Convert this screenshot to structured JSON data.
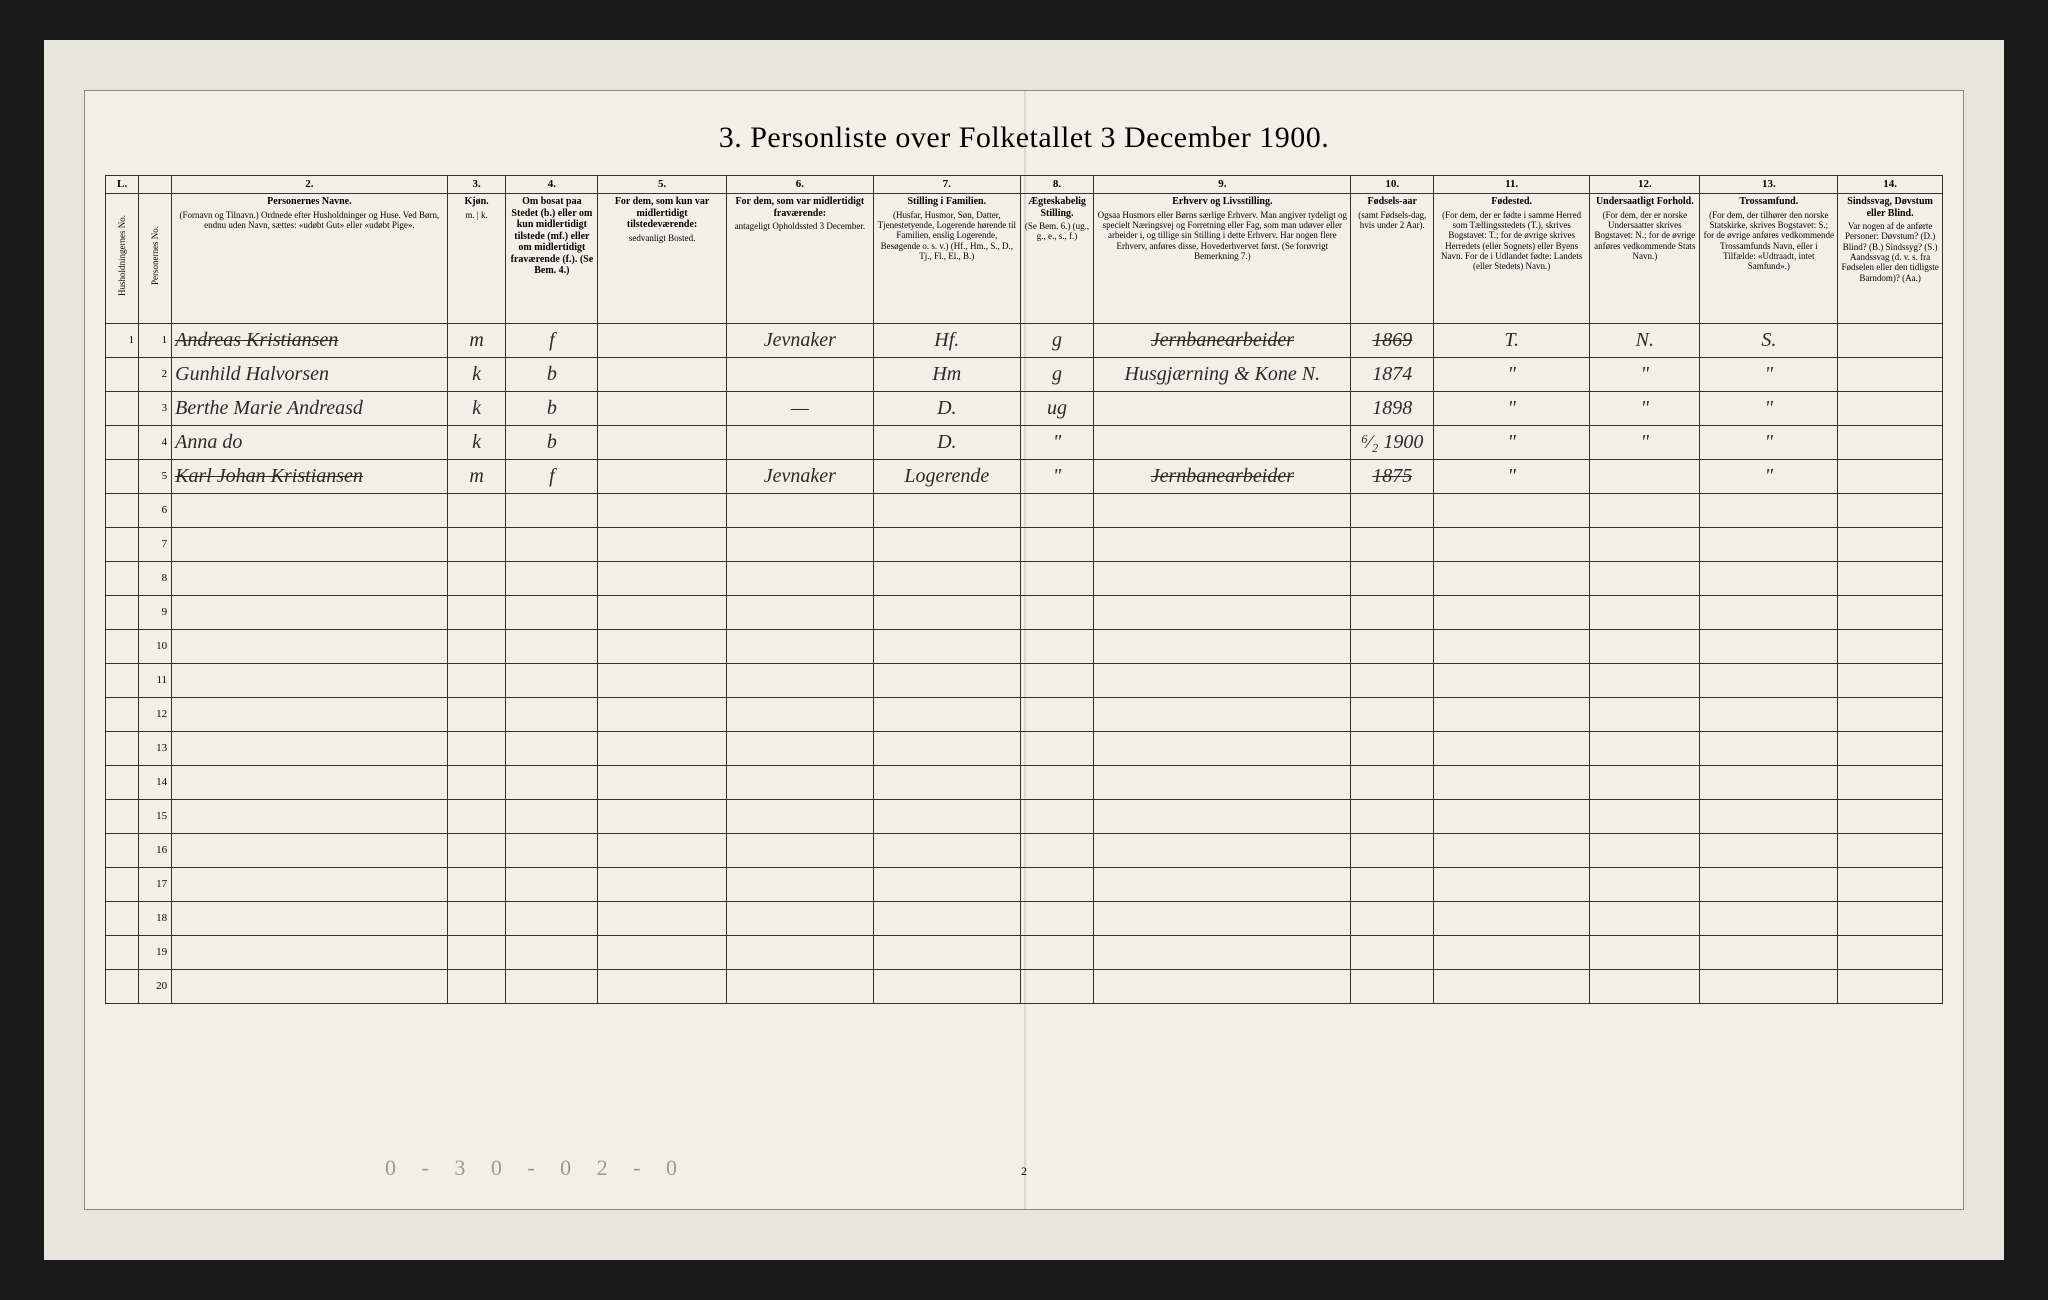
{
  "title": "3.  Personliste over Folketallet 3 December 1900.",
  "page_number": "2",
  "footer_marks": "0 - 3   0 - 0   2 - 0",
  "columns": {
    "nums": [
      "L.",
      "",
      "2.",
      "3.",
      "4.",
      "5.",
      "6.",
      "7.",
      "8.",
      "9.",
      "10.",
      "11.",
      "12.",
      "13.",
      "14."
    ],
    "widths_pct": [
      1.8,
      1.8,
      15,
      3.2,
      5,
      7,
      8,
      8,
      4,
      14,
      4.5,
      8.5,
      6,
      7.5,
      5.7
    ],
    "headers": [
      "Husholdningernes No.",
      "Personernes No.",
      "Personernes Navne.\n(Fornavn og Tilnavn.)\nOrdnede efter Husholdninger og Huse.\nVed Børn, endnu uden Navn, sættes: «udøbt Gut» eller «udøbt Pige».",
      "Kjøn.\nm. | k.",
      "Om bosat paa Stedet (b.) eller om kun midlertidigt tilstede (mf.) eller om midlertidigt fraværende (f.). (Se Bem. 4.)",
      "For dem, som kun var midlertidigt tilstedeværende:\nsedvanligt Bosted.",
      "For dem, som var midlertidigt fraværende:\nantageligt Opholdssted 3 December.",
      "Stilling i Familien.\n(Husfar, Husmor, Søn, Datter, Tjenestetyende, Logerende hørende til Familien, enslig Logerende, Besøgende o. s. v.)\n(Hf., Hm., S., D., Tj., Fl., El., B.)",
      "Ægteskabelig Stilling.\n(Se Bem. 6.)\n(ug., g., e., s., f.)",
      "Erhverv og Livsstilling.\nOgsaa Husmors eller Børns særlige Erhverv. Man angiver tydeligt og specielt Næringsvej og Forretning eller Fag, som man udøver eller arbeider i, og tillige sin Stilling i dette Erhverv. Har nogen flere Erhverv, anføres disse, Hovederhvervet først.\n(Se forøvrigt Bemerkning 7.)",
      "Fødsels-aar\n(samt Fødsels-dag, hvis under 2 Aar).",
      "Fødested.\n(For dem, der er fødte i samme Herred som Tællingsstedets (T.), skrives Bogstavet: T.; for de øvrige skrives Herredets (eller Sognets) eller Byens Navn. For de i Udlandet fødte: Landets (eller Stedets) Navn.)",
      "Undersaatligt Forhold.\n(For dem, der er norske Undersaatter skrives Bogstavet: N.; for de øvrige anføres vedkommende Stats Navn.)",
      "Trossamfund.\n(For dem, der tilhører den norske Statskirke, skrives Bogstavet: S.; for de øvrige anføres vedkommende Trossamfunds Navn, eller i Tilfælde: «Udtraadt, intet Samfund».)",
      "Sindssvag, Døvstum eller Blind.\nVar nogen af de anførte Personer:\nDøvstum? (D.)\nBlind? (B.)\nSindssyg? (S.)\nAandssvag (d. v. s. fra Fødselen eller den tidligste Barndom)? (Aa.)"
    ]
  },
  "rows": [
    {
      "n1": "1",
      "n2": "1",
      "name": "Andreas Kristiansen",
      "sex": "m",
      "res": "f",
      "col5": "",
      "col6": "Jevnaker",
      "col7": "Hf.",
      "col8": "g",
      "col9": "Jernbanearbeider",
      "col10": "1869",
      "col11": "T.",
      "col12": "N.",
      "col13": "S.",
      "col14": "",
      "struck": true
    },
    {
      "n1": "",
      "n2": "2",
      "name": "Gunhild Halvorsen",
      "sex": "k",
      "res": "b",
      "col5": "",
      "col6": "",
      "col7": "Hm",
      "col8": "g",
      "col9": "Husgjærning & Kone N.",
      "col10": "1874",
      "col11": "\"",
      "col12": "\"",
      "col13": "\"",
      "col14": ""
    },
    {
      "n1": "",
      "n2": "3",
      "name": "Berthe Marie Andreasd",
      "sex": "k",
      "res": "b",
      "col5": "",
      "col6": "—",
      "col7": "D.",
      "col8": "ug",
      "col9": "",
      "col10": "1898",
      "col11": "\"",
      "col12": "\"",
      "col13": "\"",
      "col14": ""
    },
    {
      "n1": "",
      "n2": "4",
      "name": "Anna   do",
      "sex": "k",
      "res": "b",
      "col5": "",
      "col6": "",
      "col7": "D.",
      "col8": "\"",
      "col9": "",
      "col10": "⁶⁄₂ 1900",
      "col11": "\"",
      "col12": "\"",
      "col13": "\"",
      "col14": ""
    },
    {
      "n1": "",
      "n2": "5",
      "name": "Karl Johan Kristiansen",
      "sex": "m",
      "res": "f",
      "col5": "",
      "col6": "Jevnaker",
      "col7": "Logerende",
      "col8": "\"",
      "col9": "Jernbanearbeider",
      "col10": "1875",
      "col11": "\"",
      "col12": "",
      "col13": "\"",
      "col14": "",
      "struck": true
    }
  ],
  "empty_rows": 15,
  "colors": {
    "page_bg": "#e8e6dc",
    "paper_bg": "#f2f0e6",
    "border": "#333333",
    "ink": "#2a2a2a",
    "pencil": "#999999"
  }
}
